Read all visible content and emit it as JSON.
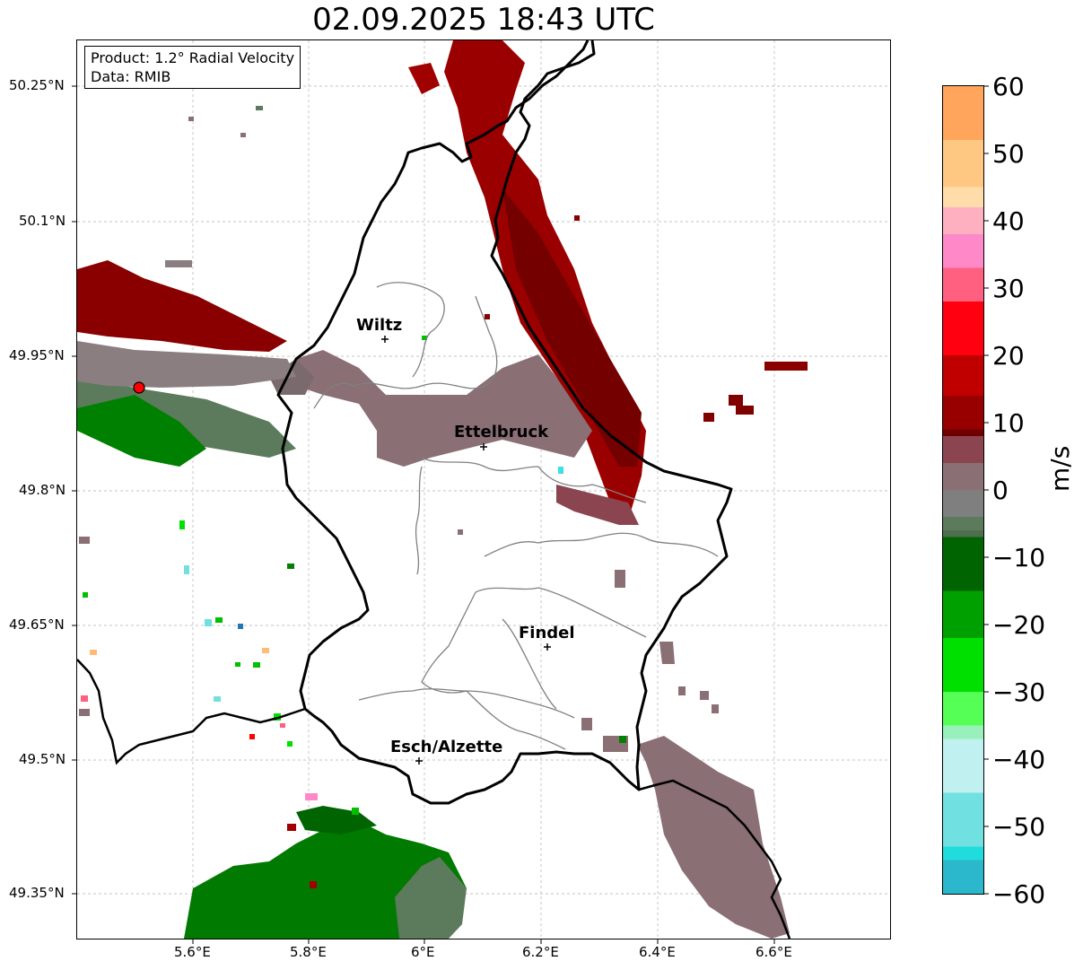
{
  "title": "02.09.2025 18:43 UTC",
  "info": {
    "product": "Product: 1.2° Radial Velocity",
    "data": "Data: RMIB"
  },
  "lat_ticks": [
    "50.25°N",
    "50.1°N",
    "49.95°N",
    "49.8°N",
    "49.65°N",
    "49.5°N",
    "49.35°N"
  ],
  "lon_ticks": [
    "5.6°E",
    "5.8°E",
    "6°E",
    "6.2°E",
    "6.4°E",
    "6.6°E"
  ],
  "cities": [
    {
      "name": "Wiltz"
    },
    {
      "name": "Ettelbruck"
    },
    {
      "name": "Findel"
    },
    {
      "name": "Esch/Alzette"
    }
  ],
  "colorbar": {
    "unit": "m/s",
    "ticks": [
      "60",
      "50",
      "40",
      "30",
      "20",
      "10",
      "0",
      "−10",
      "−20",
      "−30",
      "−40",
      "−50",
      "−60"
    ],
    "stops": [
      {
        "v": 60,
        "c": "#ffa55c"
      },
      {
        "v": 52,
        "c": "#ffc882"
      },
      {
        "v": 45,
        "c": "#ffdcaa"
      },
      {
        "v": 42,
        "c": "#ffb0c0"
      },
      {
        "v": 38,
        "c": "#ff88c8"
      },
      {
        "v": 33,
        "c": "#ff6080"
      },
      {
        "v": 28,
        "c": "#ff0010"
      },
      {
        "v": 20,
        "c": "#c00000"
      },
      {
        "v": 14,
        "c": "#980000"
      },
      {
        "v": 9,
        "c": "#700000"
      },
      {
        "v": 8,
        "c": "#8a4550"
      },
      {
        "v": 4,
        "c": "#8a6f75"
      },
      {
        "v": 0,
        "c": "#7f7f7f"
      },
      {
        "v": -4,
        "c": "#5c7a5c"
      },
      {
        "v": -6,
        "c": "#4e6e4e"
      },
      {
        "v": -7,
        "c": "#006400"
      },
      {
        "v": -15,
        "c": "#00a000"
      },
      {
        "v": -22,
        "c": "#00e000"
      },
      {
        "v": -30,
        "c": "#55ff55"
      },
      {
        "v": -35,
        "c": "#99f0bb"
      },
      {
        "v": -37,
        "c": "#c0f0f0"
      },
      {
        "v": -45,
        "c": "#70e0e0"
      },
      {
        "v": -53,
        "c": "#20dcdc"
      },
      {
        "v": -55,
        "c": "#2cb8cc"
      },
      {
        "v": -60,
        "c": "#1f77b4"
      }
    ]
  },
  "colors": {
    "border": "#000000",
    "canton": "#808080",
    "grid": "#b0b0b0",
    "radar_site": "#ff0000"
  }
}
